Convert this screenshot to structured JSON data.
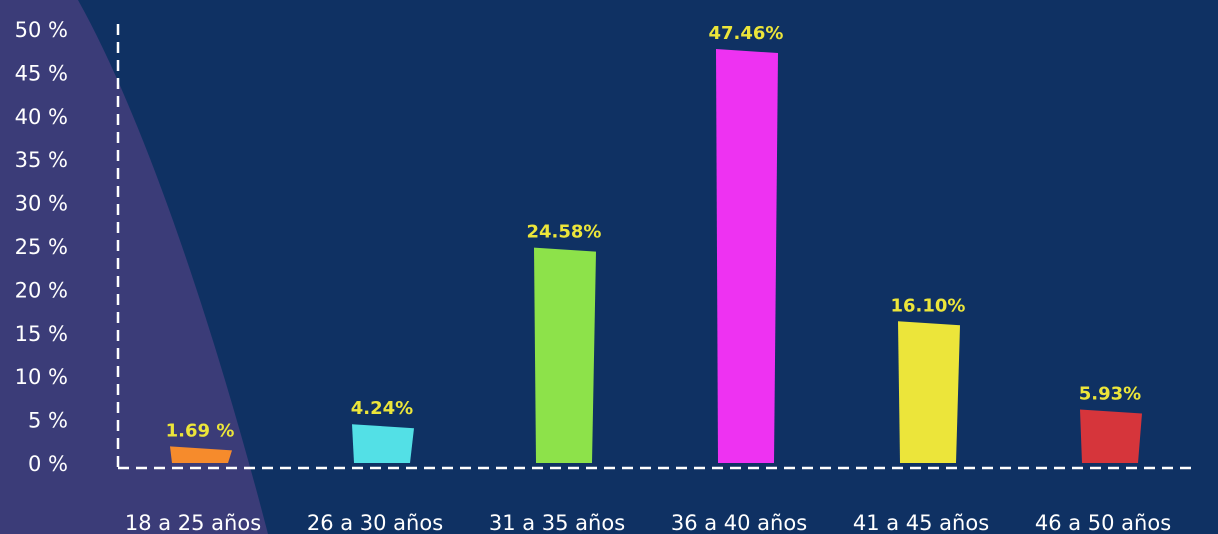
{
  "chart_data": {
    "type": "bar",
    "categories": [
      "18 a 25 años",
      "26 a 30 años",
      "31 a 35 años",
      "36 a 40 años",
      "41 a 45 años",
      "46 a 50 años"
    ],
    "values": [
      1.69,
      4.24,
      24.58,
      47.46,
      16.1,
      5.93
    ],
    "value_labels": [
      "1.69 %",
      "4.24%",
      "24.58%",
      "47.46%",
      "16.10%",
      "5.93%"
    ],
    "colors": [
      "#f68b2c",
      "#53e0e6",
      "#8de24a",
      "#ee32f2",
      "#ece53a",
      "#d6353b"
    ],
    "yticks": [
      {
        "value": 0,
        "label": "0 %"
      },
      {
        "value": 5,
        "label": "5 %"
      },
      {
        "value": 10,
        "label": "10 %"
      },
      {
        "value": 15,
        "label": "15 %"
      },
      {
        "value": 20,
        "label": "20 %"
      },
      {
        "value": 25,
        "label": "25 %"
      },
      {
        "value": 30,
        "label": "30 %"
      },
      {
        "value": 35,
        "label": "35 %"
      },
      {
        "value": 40,
        "label": "40 %"
      },
      {
        "value": 45,
        "label": "45 %"
      },
      {
        "value": 50,
        "label": "50 %"
      }
    ],
    "ylim": [
      0,
      50
    ],
    "title": "",
    "xlabel": "",
    "ylabel": "",
    "grid": false,
    "label_color": "#ece53a",
    "background": "#0f3163",
    "accent_shape_color": "#3b3c78"
  }
}
